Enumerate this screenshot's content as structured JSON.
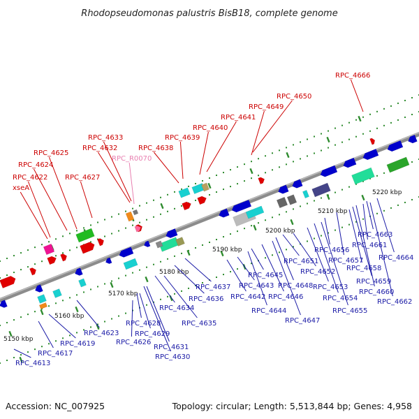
{
  "title": "Rhodopseudomonas palustris BisB18, complete genome",
  "footer": {
    "accession": "Accession: NC_007925",
    "summary": "Topology: circular; Length: 5,513,844 bp; Genes: 4,958"
  },
  "colors": {
    "forward_label": "#cc0000",
    "reverse_label": "#1a1aa6",
    "rna_label": "#e87fb0",
    "backbone": "#8c8c8c",
    "tick": "#2e8b2e"
  },
  "scale_labels": [
    "5150 kbp",
    "5160 kbp",
    "5170 kbp",
    "5180 kbp",
    "5190 kbp",
    "5200 kbp",
    "5210 kbp",
    "5220 kbp"
  ],
  "forward_labels": [
    "xseA",
    "RPC_4622",
    "RPC_4624",
    "RPC_4625",
    "RPC_4627",
    "RPC_4632",
    "RPC_4633",
    "RPC_4638",
    "RPC_4639",
    "RPC_4640",
    "RPC_4641",
    "RPC_4649",
    "RPC_4650",
    "RPC_4666"
  ],
  "rna_labels": [
    "RPC_R0070"
  ],
  "reverse_labels": [
    "RPC_4613",
    "RPC_4617",
    "RPC_4619",
    "RPC_4623",
    "RPC_4626",
    "RPC_4628",
    "RPC_4629",
    "RPC_4630",
    "RPC_4631",
    "RPC_4634",
    "RPC_4635",
    "RPC_4636",
    "RPC_4637",
    "RPC_4642",
    "RPC_4643",
    "RPC_4644",
    "RPC_4645",
    "RPC_4646",
    "RPC_4647",
    "RPC_4648",
    "RPC_4651",
    "RPC_4652",
    "RPC_4653",
    "RPC_4654",
    "RPC_4655",
    "RPC_4656",
    "RPC_4657",
    "RPC_4658",
    "RPC_4659",
    "RPC_4660",
    "RPC_4661",
    "RPC_4662",
    "RPC_4663",
    "RPC_4664"
  ]
}
